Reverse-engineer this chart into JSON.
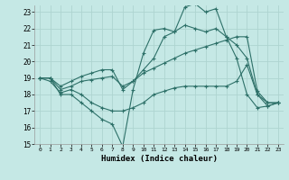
{
  "xlabel": "Humidex (Indice chaleur)",
  "background_color": "#c5e8e5",
  "grid_color": "#aed4d0",
  "line_color": "#2d7068",
  "xlim": [
    -0.5,
    23.5
  ],
  "ylim": [
    15,
    23.4
  ],
  "xticks": [
    0,
    1,
    2,
    3,
    4,
    5,
    6,
    7,
    8,
    9,
    10,
    11,
    12,
    13,
    14,
    15,
    16,
    17,
    18,
    19,
    20,
    21,
    22,
    23
  ],
  "yticks": [
    15,
    16,
    17,
    18,
    19,
    20,
    21,
    22,
    23
  ],
  "lines": [
    {
      "x": [
        0,
        1,
        2,
        3,
        4,
        5,
        6,
        7,
        8,
        9,
        10,
        11,
        12,
        13,
        14,
        15,
        16,
        17,
        18,
        19,
        20,
        21,
        22,
        23
      ],
      "y": [
        19,
        19,
        18,
        18,
        17.5,
        17,
        16.5,
        16.2,
        14.85,
        18.3,
        20.5,
        21.9,
        22,
        21.8,
        23.3,
        23.5,
        23,
        23.2,
        21.5,
        20.2,
        18,
        17.2,
        17.3,
        17.5
      ]
    },
    {
      "x": [
        0,
        1,
        2,
        3,
        4,
        5,
        6,
        7,
        8,
        9,
        10,
        11,
        12,
        13,
        14,
        15,
        16,
        17,
        18,
        19,
        20,
        21,
        22,
        23
      ],
      "y": [
        19,
        19,
        18.5,
        18.8,
        19.1,
        19.3,
        19.5,
        19.5,
        18.3,
        18.8,
        19.5,
        20.2,
        21.5,
        21.8,
        22.2,
        22,
        21.8,
        22,
        21.5,
        21,
        20.2,
        18,
        17.3,
        17.5
      ]
    },
    {
      "x": [
        0,
        1,
        2,
        3,
        4,
        5,
        6,
        7,
        8,
        9,
        10,
        11,
        12,
        13,
        14,
        15,
        16,
        17,
        18,
        19,
        20,
        21,
        22,
        23
      ],
      "y": [
        19,
        19,
        18.3,
        18.5,
        18.8,
        18.9,
        19.0,
        19.1,
        18.5,
        18.8,
        19.3,
        19.6,
        19.9,
        20.2,
        20.5,
        20.7,
        20.9,
        21.1,
        21.3,
        21.5,
        21.5,
        18.2,
        17.5,
        17.5
      ]
    },
    {
      "x": [
        0,
        1,
        2,
        3,
        4,
        5,
        6,
        7,
        8,
        9,
        10,
        11,
        12,
        13,
        14,
        15,
        16,
        17,
        18,
        19,
        20,
        21,
        22,
        23
      ],
      "y": [
        19,
        18.8,
        18.1,
        18.3,
        18.0,
        17.5,
        17.2,
        17.0,
        17.0,
        17.2,
        17.5,
        18.0,
        18.2,
        18.4,
        18.5,
        18.5,
        18.5,
        18.5,
        18.5,
        18.8,
        19.8,
        18.0,
        17.5,
        17.5
      ]
    }
  ]
}
